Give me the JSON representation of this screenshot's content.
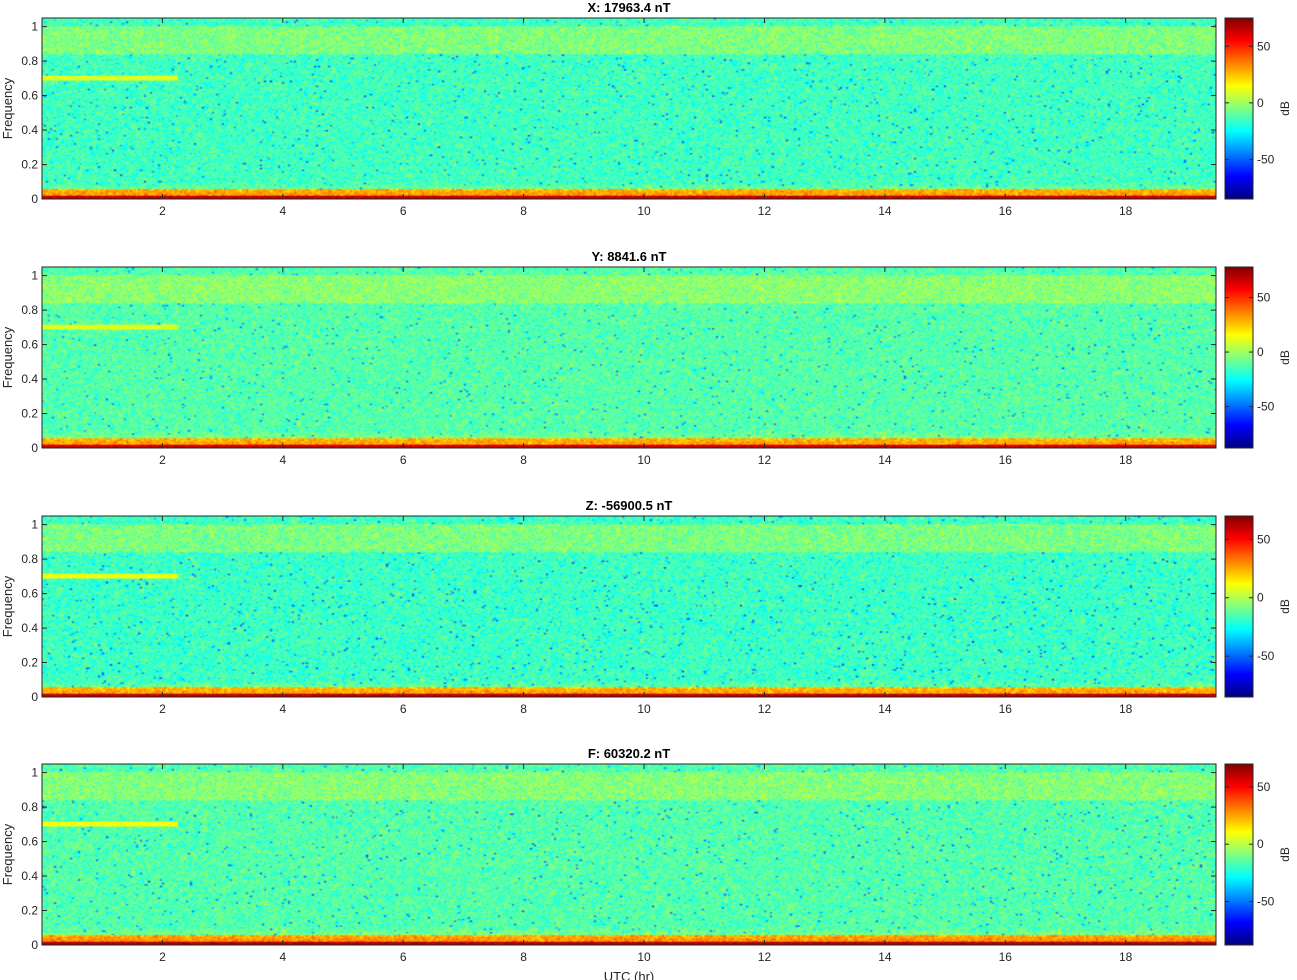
{
  "chart_data": [
    {
      "type": "heatmap",
      "title": "X: 17963.4 nT",
      "ylabel": "Frequency",
      "xlabel": "",
      "xlim": [
        0,
        19.5
      ],
      "ylim": [
        0,
        1.05
      ],
      "xticks": [
        2,
        4,
        6,
        8,
        10,
        12,
        14,
        16,
        18
      ],
      "yticks": [
        0,
        0.2,
        0.4,
        0.6,
        0.8,
        1
      ],
      "colorbar": {
        "label": "dB",
        "ticks": [
          50,
          0,
          -50
        ],
        "range": [
          -85,
          75
        ],
        "colormap": "jet"
      },
      "features": {
        "background_db": -15,
        "upper_band_db": -5,
        "low_freq_band_db": 35,
        "tone_line_freq": 0.7,
        "tone_line_end_hr": 2.25
      }
    },
    {
      "type": "heatmap",
      "title": "Y: 8841.6 nT",
      "ylabel": "Frequency",
      "xlabel": "",
      "xlim": [
        0,
        19.5
      ],
      "ylim": [
        0,
        1.05
      ],
      "xticks": [
        2,
        4,
        6,
        8,
        10,
        12,
        14,
        16,
        18
      ],
      "yticks": [
        0,
        0.2,
        0.4,
        0.6,
        0.8,
        1
      ],
      "colorbar": {
        "label": "dB",
        "ticks": [
          50,
          0,
          -50
        ],
        "range": [
          -88,
          78
        ],
        "colormap": "jet"
      },
      "features": {
        "background_db": -12,
        "upper_band_db": -3,
        "low_freq_band_db": 35,
        "tone_line_freq": 0.7,
        "tone_line_end_hr": 2.25
      }
    },
    {
      "type": "heatmap",
      "title": "Z: -56900.5 nT",
      "ylabel": "Frequency",
      "xlabel": "",
      "xlim": [
        0,
        19.5
      ],
      "ylim": [
        0,
        1.05
      ],
      "xticks": [
        2,
        4,
        6,
        8,
        10,
        12,
        14,
        16,
        18
      ],
      "yticks": [
        0,
        0.2,
        0.4,
        0.6,
        0.8,
        1
      ],
      "colorbar": {
        "label": "dB",
        "ticks": [
          50,
          0,
          -50
        ],
        "range": [
          -85,
          70
        ],
        "colormap": "jet"
      },
      "features": {
        "background_db": -18,
        "upper_band_db": -8,
        "low_freq_band_db": 30,
        "tone_line_freq": 0.7,
        "tone_line_end_hr": 2.25
      }
    },
    {
      "type": "heatmap",
      "title": "F: 60320.2 nT",
      "ylabel": "Frequency",
      "xlabel": "UTC (hr)",
      "xlim": [
        0,
        19.5
      ],
      "ylim": [
        0,
        1.05
      ],
      "xticks": [
        2,
        4,
        6,
        8,
        10,
        12,
        14,
        16,
        18
      ],
      "yticks": [
        0,
        0.2,
        0.4,
        0.6,
        0.8,
        1
      ],
      "colorbar": {
        "label": "dB",
        "ticks": [
          50,
          0,
          -50
        ],
        "range": [
          -88,
          70
        ],
        "colormap": "jet"
      },
      "features": {
        "background_db": -16,
        "upper_band_db": -8,
        "low_freq_band_db": 32,
        "tone_line_freq": 0.7,
        "tone_line_end_hr": 2.25
      }
    }
  ]
}
